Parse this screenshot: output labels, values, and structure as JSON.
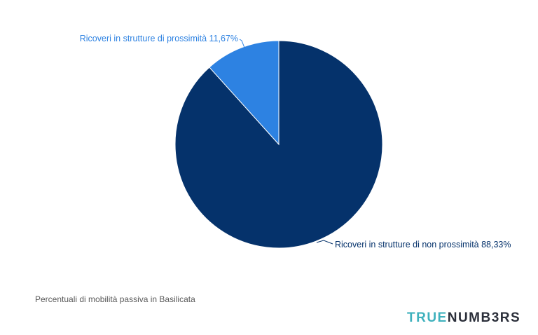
{
  "chart_data": {
    "type": "pie",
    "title": "",
    "slices": [
      {
        "label": "Ricoveri in strutture di non prossimità 88,33%",
        "value": 88.33,
        "color": "#05326b"
      },
      {
        "label": "Ricoveri in strutture di prossimità 11,67%",
        "value": 11.67,
        "color": "#2d82e2"
      }
    ]
  },
  "caption": "Percentuali di mobilità passiva in Basilicata",
  "brand": {
    "part1": "TRUE",
    "part2": "NUMB3RS"
  }
}
